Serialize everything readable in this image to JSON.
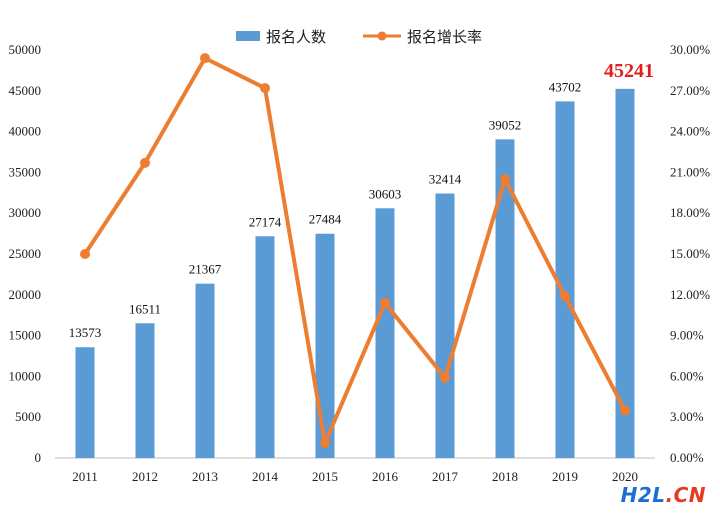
{
  "chart_data": {
    "type": "bar",
    "categories": [
      "2011",
      "2012",
      "2013",
      "2014",
      "2015",
      "2016",
      "2017",
      "2018",
      "2019",
      "2020"
    ],
    "series": [
      {
        "name": "报名人数",
        "type": "bar",
        "axis": "left",
        "values": [
          13573,
          16511,
          21367,
          27174,
          27484,
          30603,
          32414,
          39052,
          43702,
          45241
        ]
      },
      {
        "name": "报名增长率",
        "type": "line",
        "axis": "right",
        "values": [
          0.15,
          0.217,
          0.294,
          0.272,
          0.011,
          0.114,
          0.059,
          0.205,
          0.119,
          0.035
        ]
      }
    ],
    "y_left": {
      "ylim": [
        0,
        50000
      ],
      "ticks": [
        0,
        5000,
        10000,
        15000,
        20000,
        25000,
        30000,
        35000,
        40000,
        45000,
        50000
      ]
    },
    "y_right": {
      "ylim": [
        0,
        0.3
      ],
      "tick_labels": [
        "0.00%",
        "3.00%",
        "6.00%",
        "9.00%",
        "12.00%",
        "15.00%",
        "18.00%",
        "21.00%",
        "24.00%",
        "27.00%",
        "30.00%"
      ]
    },
    "data_labels": [
      "13573",
      "16511",
      "21367",
      "27174",
      "27484",
      "30603",
      "32414",
      "39052",
      "43702",
      "45241"
    ],
    "highlight_index": 9,
    "grid": false,
    "legend_position": "top",
    "colors": {
      "bar": "#5b9bd5",
      "line": "#ed7d31",
      "highlight": "#e31c1c"
    }
  },
  "watermark": {
    "part1": "H2L",
    "part2": ".CN"
  }
}
